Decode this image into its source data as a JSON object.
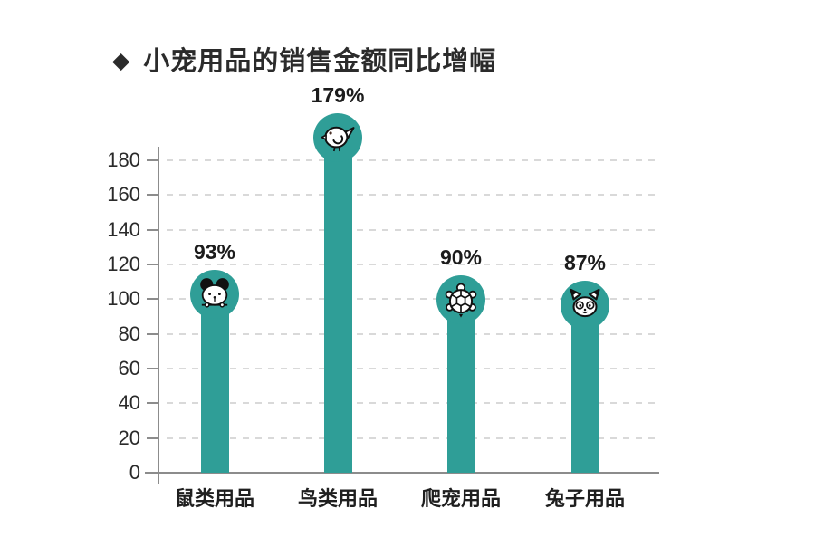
{
  "header": {
    "bullet": "◆",
    "title": "小宠用品的销售金额同比增幅"
  },
  "chart_data": {
    "type": "bar",
    "title": "小宠用品的销售金额同比增幅",
    "categories": [
      "鼠类用品",
      "鸟类用品",
      "爬宠用品",
      "兔子用品"
    ],
    "values": [
      93,
      179,
      90,
      87
    ],
    "value_labels": [
      "93%",
      "179%",
      "90%",
      "87%"
    ],
    "icons": [
      "mouse-icon",
      "bird-icon",
      "turtle-icon",
      "rabbit-icon"
    ],
    "unit": "%",
    "yticks": [
      0,
      20,
      40,
      60,
      80,
      100,
      120,
      140,
      160,
      180
    ],
    "ylim": [
      0,
      190
    ],
    "xlabel": "",
    "ylabel": "",
    "grid": "horizontal-dashed",
    "legend": "none",
    "bar_color": "#2F9E97",
    "axis_color": "#8C8C8C",
    "gridline_color": "#D9D9D9",
    "text_color": "#222222"
  }
}
